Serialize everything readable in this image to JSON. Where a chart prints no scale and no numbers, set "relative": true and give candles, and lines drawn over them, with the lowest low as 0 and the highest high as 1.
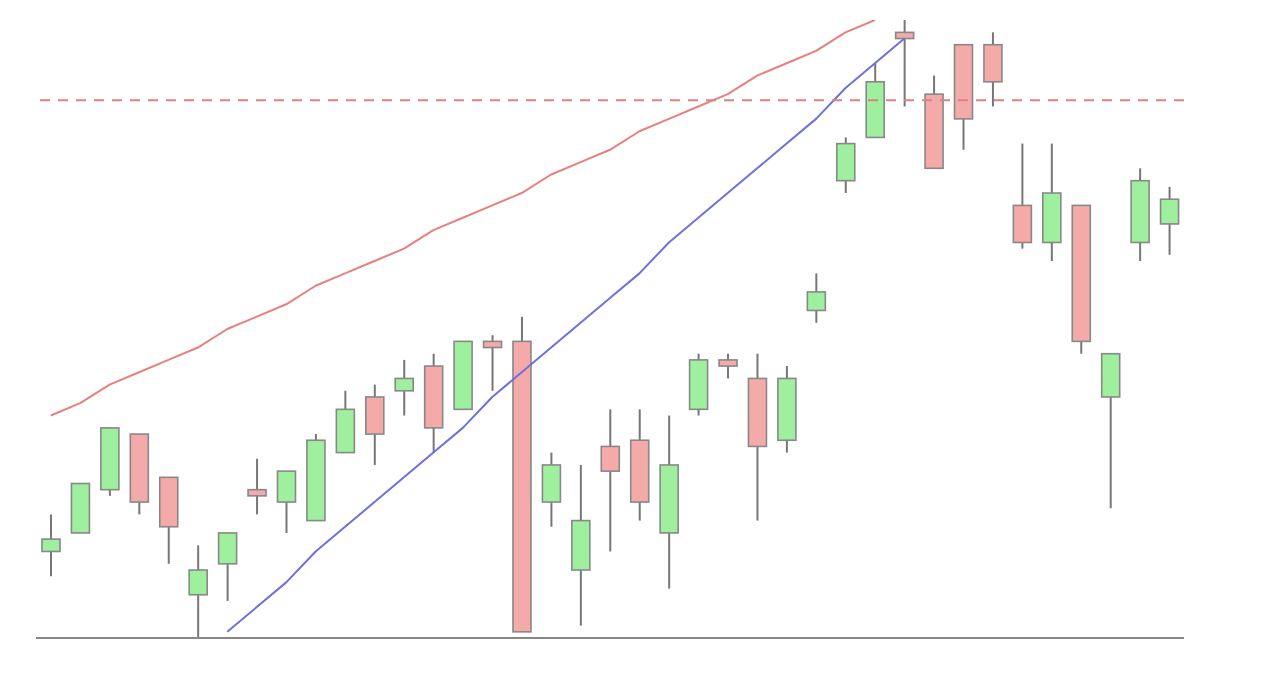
{
  "chart_data": {
    "type": "candlestick",
    "relative": true,
    "categories": [
      null,
      null,
      null,
      null,
      null,
      null,
      null,
      null,
      null,
      null,
      null,
      null,
      null,
      null,
      null,
      null,
      null,
      null,
      null,
      null,
      null,
      null,
      null,
      null,
      null,
      null,
      null,
      null,
      null,
      null,
      null,
      null,
      null,
      null,
      null,
      null,
      null,
      null,
      null
    ],
    "ohlc": [
      [
        0.14,
        0.2,
        0.1,
        0.16
      ],
      [
        0.17,
        0.25,
        0.17,
        0.25
      ],
      [
        0.24,
        0.34,
        0.23,
        0.34
      ],
      [
        0.33,
        0.33,
        0.2,
        0.22
      ],
      [
        0.26,
        0.26,
        0.12,
        0.18
      ],
      [
        0.07,
        0.15,
        0,
        0.11
      ],
      [
        0.12,
        0.17,
        0.06,
        0.17
      ],
      [
        0.24,
        0.29,
        0.2,
        0.23
      ],
      [
        0.22,
        0.27,
        0.17,
        0.27
      ],
      [
        0.19,
        0.33,
        0.19,
        0.32
      ],
      [
        0.3,
        0.4,
        0.3,
        0.37
      ],
      [
        0.39,
        0.41,
        0.28,
        0.33
      ],
      [
        0.4,
        0.45,
        0.36,
        0.42
      ],
      [
        0.44,
        0.46,
        0.3,
        0.34
      ],
      [
        0.37,
        0.48,
        0.37,
        0.48
      ],
      [
        0.48,
        0.49,
        0.4,
        0.47
      ],
      [
        0.48,
        0.52,
        0.01,
        0.01
      ],
      [
        0.22,
        0.3,
        0.18,
        0.28
      ],
      [
        0.11,
        0.28,
        0.02,
        0.19
      ],
      [
        0.31,
        0.37,
        0.14,
        0.27
      ],
      [
        0.32,
        0.37,
        0.19,
        0.22
      ],
      [
        0.17,
        0.36,
        0.08,
        0.28
      ],
      [
        0.37,
        0.46,
        0.36,
        0.45
      ],
      [
        0.45,
        0.46,
        0.42,
        0.44
      ],
      [
        0.42,
        0.46,
        0.19,
        0.31
      ],
      [
        0.32,
        0.44,
        0.3,
        0.42
      ],
      [
        0.53,
        0.59,
        0.51,
        0.56
      ],
      [
        0.74,
        0.81,
        0.72,
        0.8
      ],
      [
        0.81,
        0.93,
        0.81,
        0.9
      ],
      [
        0.98,
        1,
        0.86,
        0.97
      ],
      [
        0.88,
        0.91,
        0.76,
        0.76
      ],
      [
        0.96,
        0.96,
        0.79,
        0.84
      ],
      [
        0.96,
        0.98,
        0.86,
        0.9
      ],
      [
        0.7,
        0.8,
        0.63,
        0.64
      ],
      [
        0.64,
        0.8,
        0.61,
        0.72
      ],
      [
        0.7,
        0.7,
        0.46,
        0.48
      ],
      [
        0.39,
        0.46,
        0.21,
        0.46
      ],
      [
        0.64,
        0.76,
        0.61,
        0.74
      ],
      [
        0.67,
        0.73,
        0.62,
        0.71
      ]
    ],
    "colors": [
      "#9ef09e",
      "#9ef09e",
      "#9ef09e",
      "#f5aaaa",
      "#f5aaaa",
      "#9ef09e",
      "#9ef09e",
      "#f5aaaa",
      "#9ef09e",
      "#9ef09e",
      "#9ef09e",
      "#f5aaaa",
      "#9ef09e",
      "#f5aaaa",
      "#9ef09e",
      "#f5aaaa",
      "#f5aaaa",
      "#9ef09e",
      "#9ef09e",
      "#f5aaaa",
      "#f5aaaa",
      "#9ef09e",
      "#9ef09e",
      "#f5aaaa",
      "#f5aaaa",
      "#9ef09e",
      "#9ef09e",
      "#9ef09e",
      "#9ef09e",
      "#f5aaaa",
      "#f5aaaa",
      "#f5aaaa",
      "#f5aaaa",
      "#f5aaaa",
      "#9ef09e",
      "#f5aaaa",
      "#9ef09e",
      "#9ef09e",
      "#9ef09e"
    ],
    "series": [
      {
        "type": "line",
        "color": "#e88080",
        "values": [
          0.36,
          0.38,
          0.41,
          0.43,
          0.45,
          0.47,
          0.5,
          0.52,
          0.54,
          0.57,
          0.59,
          0.61,
          0.63,
          0.66,
          0.68,
          0.7,
          0.72,
          0.75,
          0.77,
          0.79,
          0.82,
          0.84,
          0.86,
          0.88,
          0.91,
          0.93,
          0.95,
          0.98,
          1.0,
          null,
          null,
          null,
          null,
          null,
          null,
          null,
          null,
          null,
          null
        ]
      },
      {
        "type": "line",
        "color": "#7070dd",
        "values": [
          null,
          null,
          null,
          null,
          null,
          null,
          0.01,
          0.05,
          0.09,
          0.14,
          0.18,
          0.22,
          0.26,
          0.3,
          0.34,
          0.39,
          0.43,
          0.47,
          0.51,
          0.55,
          0.59,
          0.64,
          0.68,
          0.72,
          0.76,
          0.8,
          0.84,
          0.89,
          0.93,
          0.97,
          null,
          null,
          null,
          null,
          null,
          null,
          null,
          null,
          null
        ]
      }
    ],
    "ref_lines": [
      {
        "axis": "y",
        "value": 0.87,
        "color": "#e08080",
        "line_style": "dashed"
      }
    ]
  }
}
